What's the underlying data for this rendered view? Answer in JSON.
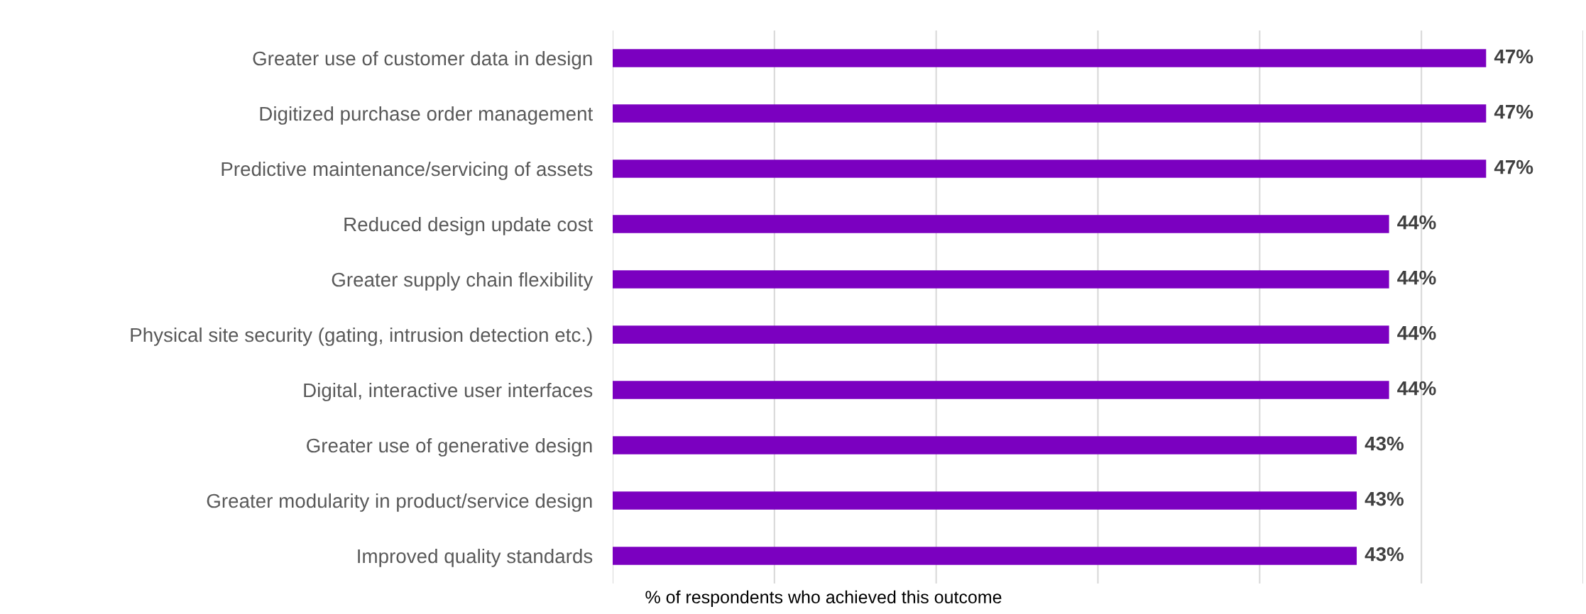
{
  "chart_data": {
    "type": "bar",
    "orientation": "horizontal",
    "xlabel": "% of respondents who achieved this outcome",
    "categories": [
      "Greater use of customer data in design",
      "Digitized purchase order management",
      "Predictive maintenance/servicing of assets",
      "Reduced design update cost",
      "Greater supply chain flexibility",
      "Physical site security (gating, intrusion detection etc.)",
      "Digital, interactive user interfaces",
      "Greater use of generative design",
      "Greater modularity in product/service design",
      "Improved quality standards"
    ],
    "values": [
      47,
      47,
      47,
      44,
      44,
      44,
      44,
      43,
      43,
      43
    ],
    "value_labels": [
      "47%",
      "47%",
      "47%",
      "44%",
      "44%",
      "44%",
      "44%",
      "43%",
      "43%",
      "43%"
    ],
    "color": "#7b00c0",
    "xlim": [
      20,
      50
    ],
    "xticks": [
      {
        "value": 20,
        "label": null
      },
      {
        "value": 25,
        "label": null
      },
      {
        "value": 30,
        "label": null
      },
      {
        "value": 35,
        "label": null
      },
      {
        "value": 40,
        "label": null
      },
      {
        "value": 45,
        "label": null
      },
      {
        "value": 50,
        "label": null
      }
    ],
    "tick_labels": "y",
    "grid": "x",
    "legend": false
  }
}
